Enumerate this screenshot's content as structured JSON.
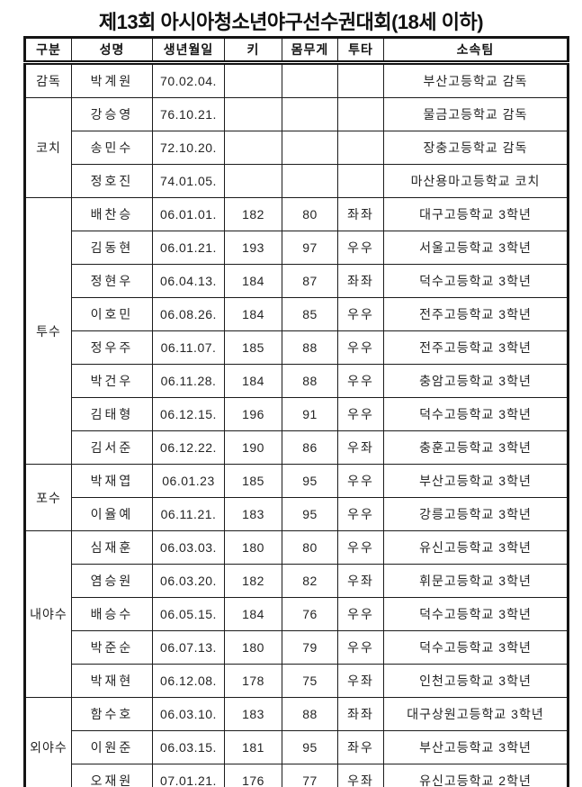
{
  "title": "제13회 아시아청소년야구선수권대회(18세 이하)",
  "table": {
    "headers": [
      "구분",
      "성명",
      "생년월일",
      "키",
      "몸무게",
      "투타",
      "소속팀"
    ],
    "groups": [
      {
        "category": "감독",
        "rows": [
          {
            "name": "박계원",
            "birth": "70.02.04.",
            "height": "",
            "weight": "",
            "throwbat": "",
            "team": "부산고등학교 감독"
          }
        ]
      },
      {
        "category": "코치",
        "rows": [
          {
            "name": "강승영",
            "birth": "76.10.21.",
            "height": "",
            "weight": "",
            "throwbat": "",
            "team": "물금고등학교 감독"
          },
          {
            "name": "송민수",
            "birth": "72.10.20.",
            "height": "",
            "weight": "",
            "throwbat": "",
            "team": "장충고등학교 감독"
          },
          {
            "name": "정호진",
            "birth": "74.01.05.",
            "height": "",
            "weight": "",
            "throwbat": "",
            "team": "마산용마고등학교 코치"
          }
        ]
      },
      {
        "category": "투수",
        "rows": [
          {
            "name": "배찬승",
            "birth": "06.01.01.",
            "height": "182",
            "weight": "80",
            "throwbat": "좌좌",
            "team": "대구고등학교 3학년"
          },
          {
            "name": "김동현",
            "birth": "06.01.21.",
            "height": "193",
            "weight": "97",
            "throwbat": "우우",
            "team": "서울고등학교 3학년"
          },
          {
            "name": "정현우",
            "birth": "06.04.13.",
            "height": "184",
            "weight": "87",
            "throwbat": "좌좌",
            "team": "덕수고등학교 3학년"
          },
          {
            "name": "이호민",
            "birth": "06.08.26.",
            "height": "184",
            "weight": "85",
            "throwbat": "우우",
            "team": "전주고등학교 3학년"
          },
          {
            "name": "정우주",
            "birth": "06.11.07.",
            "height": "185",
            "weight": "88",
            "throwbat": "우우",
            "team": "전주고등학교 3학년"
          },
          {
            "name": "박건우",
            "birth": "06.11.28.",
            "height": "184",
            "weight": "88",
            "throwbat": "우우",
            "team": "충암고등학교 3학년"
          },
          {
            "name": "김태형",
            "birth": "06.12.15.",
            "height": "196",
            "weight": "91",
            "throwbat": "우우",
            "team": "덕수고등학교 3학년"
          },
          {
            "name": "김서준",
            "birth": "06.12.22.",
            "height": "190",
            "weight": "86",
            "throwbat": "우좌",
            "team": "충훈고등학교 3학년"
          }
        ]
      },
      {
        "category": "포수",
        "rows": [
          {
            "name": "박재엽",
            "birth": "06.01.23",
            "height": "185",
            "weight": "95",
            "throwbat": "우우",
            "team": "부산고등학교 3학년"
          },
          {
            "name": "이율예",
            "birth": "06.11.21.",
            "height": "183",
            "weight": "95",
            "throwbat": "우우",
            "team": "강릉고등학교 3학년"
          }
        ]
      },
      {
        "category": "내야수",
        "rows": [
          {
            "name": "심재훈",
            "birth": "06.03.03.",
            "height": "180",
            "weight": "80",
            "throwbat": "우우",
            "team": "유신고등학교 3학년"
          },
          {
            "name": "염승원",
            "birth": "06.03.20.",
            "height": "182",
            "weight": "82",
            "throwbat": "우좌",
            "team": "휘문고등학교 3학년"
          },
          {
            "name": "배승수",
            "birth": "06.05.15.",
            "height": "184",
            "weight": "76",
            "throwbat": "우우",
            "team": "덕수고등학교 3학년"
          },
          {
            "name": "박준순",
            "birth": "06.07.13.",
            "height": "180",
            "weight": "79",
            "throwbat": "우우",
            "team": "덕수고등학교 3학년"
          },
          {
            "name": "박재현",
            "birth": "06.12.08.",
            "height": "178",
            "weight": "75",
            "throwbat": "우좌",
            "team": "인천고등학교 3학년"
          }
        ]
      },
      {
        "category": "외야수",
        "rows": [
          {
            "name": "함수호",
            "birth": "06.03.10.",
            "height": "183",
            "weight": "88",
            "throwbat": "좌좌",
            "team": "대구상원고등학교 3학년"
          },
          {
            "name": "이원준",
            "birth": "06.03.15.",
            "height": "181",
            "weight": "95",
            "throwbat": "좌우",
            "team": "부산고등학교 3학년"
          },
          {
            "name": "오재원",
            "birth": "07.01.21.",
            "height": "176",
            "weight": "77",
            "throwbat": "우좌",
            "team": "유신고등학교 2학년"
          }
        ]
      }
    ]
  }
}
